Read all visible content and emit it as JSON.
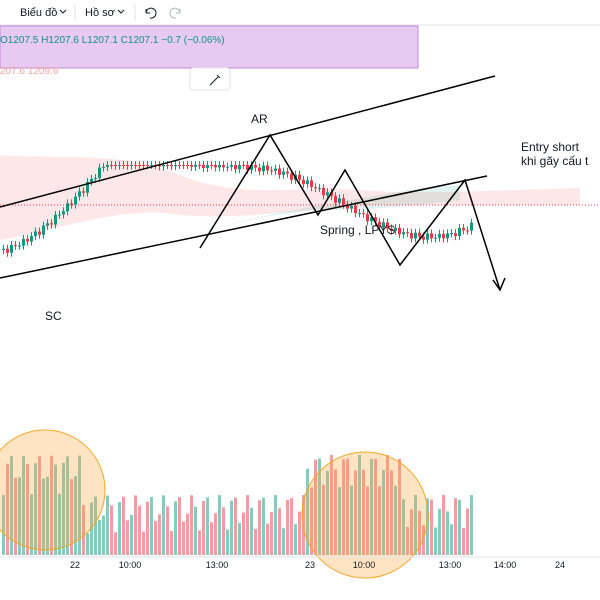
{
  "toolbar": {
    "chart_menu": "Biểu đồ",
    "profile_menu": "Hồ sơ"
  },
  "legend": {
    "ohlc": "O1207.5 H1207.6 L1207.1 C1207.1 −0.7 (−0.06%)",
    "indicator": "207.6  1209.6"
  },
  "annotations": {
    "ar": "AR",
    "entry_line1": "Entry short",
    "entry_line2": "khi gãy cấu t",
    "spring": "Spring , LPYS",
    "sc": "SC"
  },
  "x_axis": [
    "22",
    "10:00",
    "13:00",
    "23",
    "10:00",
    "13:00",
    "14:00",
    "24"
  ]
}
